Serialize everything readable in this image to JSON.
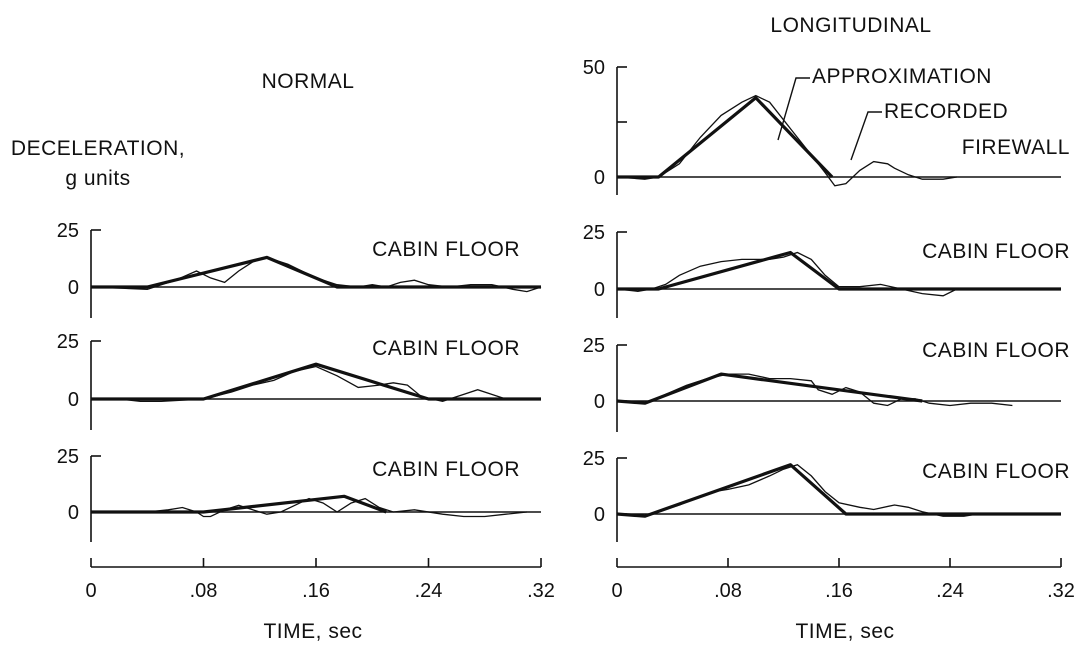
{
  "chart_data": {
    "type": "line",
    "headers": {
      "normal": "NORMAL",
      "longitudinal": "LONGITUDINAL"
    },
    "ylabel": [
      "DECELERATION,",
      "g units"
    ],
    "xlabel": "TIME, sec",
    "xticks": [
      "0",
      ".08",
      ".16",
      ".24",
      ".32"
    ],
    "xlim": [
      0,
      0.32
    ],
    "legend": {
      "approximation": "APPROXIMATION",
      "recorded": "RECORDED"
    },
    "panels": [
      {
        "column": "longitudinal",
        "row": 0,
        "label": "FIREWALL",
        "ylim": [
          -10,
          50
        ],
        "yticks": [
          0,
          50
        ],
        "approximation": {
          "x": [
            0,
            0.03,
            0.1,
            0.155
          ],
          "y": [
            0,
            0,
            36,
            0
          ]
        },
        "recorded": {
          "x": [
            0,
            0.02,
            0.03,
            0.045,
            0.06,
            0.075,
            0.09,
            0.1,
            0.11,
            0.125,
            0.14,
            0.15,
            0.157,
            0.165,
            0.175,
            0.185,
            0.195,
            0.2,
            0.21,
            0.22,
            0.235,
            0.245
          ],
          "y": [
            0,
            -1,
            0,
            6,
            18,
            28,
            34,
            37,
            34,
            22,
            10,
            2,
            -4,
            -3,
            3,
            7,
            6,
            4,
            1,
            -1,
            -1,
            0
          ]
        }
      },
      {
        "column": "normal",
        "row": 1,
        "label": "CABIN FLOOR",
        "ylim": [
          -12,
          25
        ],
        "yticks": [
          0,
          25
        ],
        "approximation": {
          "x": [
            0,
            0.04,
            0.125,
            0.175,
            0.32
          ],
          "y": [
            0,
            0,
            13,
            0,
            0
          ]
        },
        "recorded": {
          "x": [
            0,
            0.04,
            0.06,
            0.075,
            0.085,
            0.095,
            0.105,
            0.115,
            0.125,
            0.14,
            0.16,
            0.175,
            0.19,
            0.2,
            0.21,
            0.22,
            0.23,
            0.24,
            0.255,
            0.27,
            0.285,
            0.3,
            0.31,
            0.32
          ],
          "y": [
            0,
            -1,
            3,
            7,
            4,
            2,
            7,
            11,
            13,
            10,
            4,
            1,
            0,
            1,
            0,
            2,
            3,
            1,
            0,
            1,
            1,
            -1,
            -2,
            0
          ]
        }
      },
      {
        "column": "longitudinal",
        "row": 1,
        "label": "CABIN FLOOR",
        "ylim": [
          -12,
          25
        ],
        "yticks": [
          0,
          25
        ],
        "approximation": {
          "x": [
            0,
            0.03,
            0.125,
            0.16,
            0.32
          ],
          "y": [
            0,
            0,
            16,
            0,
            0
          ]
        },
        "recorded": {
          "x": [
            0,
            0.015,
            0.025,
            0.035,
            0.045,
            0.06,
            0.075,
            0.09,
            0.1,
            0.11,
            0.12,
            0.13,
            0.14,
            0.15,
            0.16,
            0.175,
            0.19,
            0.205,
            0.22,
            0.235,
            0.245
          ],
          "y": [
            0,
            -1,
            0,
            2,
            6,
            10,
            12,
            13,
            13,
            13,
            14,
            16,
            13,
            6,
            1,
            1,
            2,
            0,
            -2,
            -3,
            0
          ]
        }
      },
      {
        "column": "normal",
        "row": 2,
        "label": "CABIN FLOOR",
        "ylim": [
          -12,
          25
        ],
        "yticks": [
          0,
          25
        ],
        "approximation": {
          "x": [
            0,
            0.08,
            0.16,
            0.24,
            0.32
          ],
          "y": [
            0,
            0,
            15,
            0,
            0
          ]
        },
        "recorded": {
          "x": [
            0,
            0.01,
            0.02,
            0.035,
            0.05,
            0.08,
            0.1,
            0.115,
            0.13,
            0.145,
            0.16,
            0.175,
            0.19,
            0.205,
            0.215,
            0.225,
            0.235,
            0.25,
            0.265,
            0.275,
            0.285,
            0.295
          ],
          "y": [
            0,
            0,
            0,
            -1,
            -1,
            0,
            3,
            6,
            8,
            12,
            14,
            10,
            5,
            6,
            7,
            6,
            1,
            -1,
            2,
            4,
            2,
            0
          ]
        }
      },
      {
        "column": "longitudinal",
        "row": 2,
        "label": "CABIN FLOOR",
        "ylim": [
          -12,
          25
        ],
        "yticks": [
          0,
          25
        ],
        "approximation": {
          "x": [
            0,
            0.02,
            0.075,
            0.22
          ],
          "y": [
            0,
            -1,
            12,
            0
          ]
        },
        "recorded": {
          "x": [
            0,
            0.02,
            0.035,
            0.05,
            0.065,
            0.08,
            0.095,
            0.11,
            0.125,
            0.14,
            0.145,
            0.155,
            0.165,
            0.175,
            0.185,
            0.195,
            0.205,
            0.215,
            0.225,
            0.24,
            0.255,
            0.27,
            0.285
          ],
          "y": [
            0,
            -1,
            3,
            7,
            10,
            12,
            12,
            10,
            10,
            9,
            5,
            3,
            6,
            4,
            -1,
            -2,
            1,
            1,
            -1,
            -2,
            -1,
            -1,
            -2
          ]
        }
      },
      {
        "column": "normal",
        "row": 3,
        "label": "CABIN FLOOR",
        "ylim": [
          -12,
          25
        ],
        "yticks": [
          0,
          25
        ],
        "approximation": {
          "x": [
            0,
            0.08,
            0.18,
            0.21
          ],
          "y": [
            0,
            0,
            7,
            0
          ]
        },
        "recorded": {
          "x": [
            0,
            0.04,
            0.055,
            0.065,
            0.075,
            0.08,
            0.085,
            0.095,
            0.105,
            0.115,
            0.125,
            0.135,
            0.145,
            0.155,
            0.165,
            0.175,
            0.185,
            0.195,
            0.205,
            0.215,
            0.23,
            0.25,
            0.265,
            0.28,
            0.295,
            0.31
          ],
          "y": [
            0,
            0,
            1,
            2,
            0,
            -2,
            -2,
            1,
            3,
            1,
            -1,
            0,
            3,
            6,
            4,
            0,
            4,
            6,
            2,
            0,
            1,
            -1,
            -2,
            -2,
            -1,
            0
          ]
        }
      },
      {
        "column": "longitudinal",
        "row": 3,
        "label": "CABIN FLOOR",
        "ylim": [
          -12,
          25
        ],
        "yticks": [
          0,
          25
        ],
        "approximation": {
          "x": [
            0,
            0.02,
            0.125,
            0.165,
            0.32
          ],
          "y": [
            0,
            -1,
            22,
            0,
            0
          ]
        },
        "recorded": {
          "x": [
            0,
            0.02,
            0.03,
            0.045,
            0.06,
            0.07,
            0.08,
            0.095,
            0.11,
            0.12,
            0.13,
            0.14,
            0.15,
            0.16,
            0.175,
            0.185,
            0.2,
            0.21,
            0.22,
            0.235,
            0.25,
            0.26
          ],
          "y": [
            0,
            -1,
            1,
            4,
            8,
            10,
            11,
            13,
            17,
            20,
            22,
            17,
            10,
            5,
            3,
            2,
            4,
            3,
            1,
            -1,
            -1,
            0
          ]
        }
      }
    ]
  }
}
